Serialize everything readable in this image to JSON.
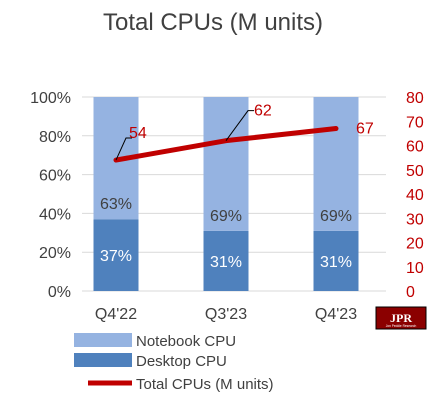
{
  "chart_data": {
    "type": "bar",
    "stacked": true,
    "title": "Total CPUs (M units)",
    "categories": [
      "Q4'22",
      "Q3'23",
      "Q4'23"
    ],
    "series": [
      {
        "name": "Desktop CPU",
        "values": [
          37,
          31,
          31
        ],
        "labels": [
          "37%",
          "31%",
          "31%"
        ],
        "color": "#4f81bd"
      },
      {
        "name": "Notebook CPU",
        "values": [
          63,
          69,
          69
        ],
        "labels": [
          "63%",
          "69%",
          "69%"
        ],
        "color": "#95b3e1"
      }
    ],
    "line_series": {
      "name": "Total CPUs (M units)",
      "values": [
        54,
        62,
        67
      ],
      "labels": [
        "54",
        "62",
        "67"
      ],
      "color": "#c00000",
      "axis": "right"
    },
    "y_left": {
      "ticks": [
        "0%",
        "20%",
        "40%",
        "60%",
        "80%",
        "100%"
      ],
      "range": [
        0,
        100
      ]
    },
    "y_right": {
      "ticks": [
        "0",
        "10",
        "20",
        "30",
        "40",
        "50",
        "60",
        "70",
        "80"
      ],
      "range": [
        0,
        80
      ]
    },
    "grid": true,
    "legend": {
      "position": "bottom-left",
      "entries": [
        "Notebook CPU",
        "Desktop CPU",
        "Total CPUs (M units)"
      ]
    }
  },
  "logo": {
    "text": "JPR",
    "subtext": "Jon Peddie Research"
  }
}
